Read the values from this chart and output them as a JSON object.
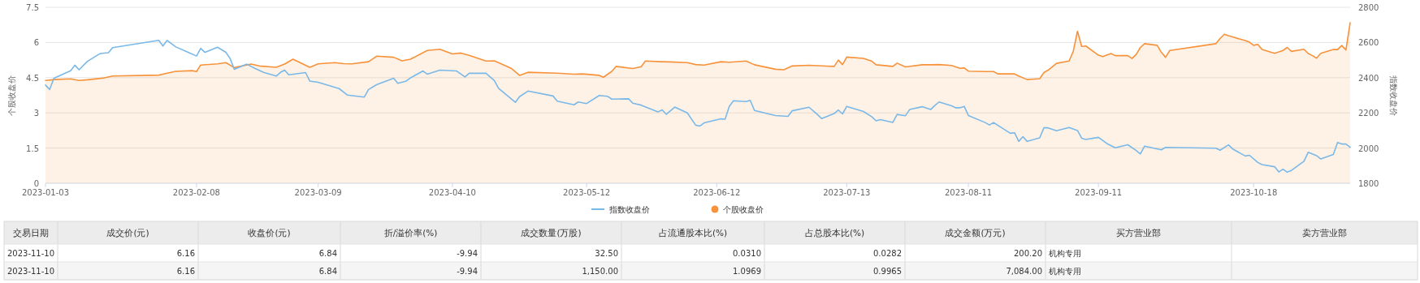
{
  "chart_data": [
    {
      "type": "line",
      "ylabel": "个股收盘价",
      "y2label": "指数收盘价",
      "xlim": [
        "2023-01-03",
        "2023-11-10"
      ],
      "xticks": [
        {
          "value": "2023-01-03",
          "label": "2023-01-03"
        },
        {
          "value": "2023-02-08",
          "label": "2023-02-08"
        },
        {
          "value": "2023-03-09",
          "label": "2023-03-09"
        },
        {
          "value": "2023-04-10",
          "label": "2023-04-10"
        },
        {
          "value": "2023-05-12",
          "label": "2023-05-12"
        },
        {
          "value": "2023-06-12",
          "label": "2023-06-12"
        },
        {
          "value": "2023-07-13",
          "label": "2023-07-13"
        },
        {
          "value": "2023-08-11",
          "label": "2023-08-11"
        },
        {
          "value": "2023-09-11",
          "label": "2023-09-11"
        },
        {
          "value": "2023-10-18",
          "label": "2023-10-18"
        }
      ],
      "ylim": [
        0,
        7.5
      ],
      "yticks": [
        0,
        1.5,
        3,
        4.5,
        6,
        7.5
      ],
      "y2lim": [
        1800,
        2800
      ],
      "y2ticks": [
        1800,
        2000,
        2200,
        2400,
        2600,
        2800
      ],
      "grid": "y",
      "legend": "bottom",
      "series": [
        {
          "name": "指数收盘价",
          "type": "line",
          "axis": "y2",
          "color": "#7ab8e8",
          "x": [
            "2023-01-03",
            "2023-01-04",
            "2023-01-05",
            "2023-01-09",
            "2023-01-10",
            "2023-01-11",
            "2023-01-13",
            "2023-01-16",
            "2023-01-18",
            "2023-01-19",
            "2023-01-30",
            "2023-01-31",
            "2023-02-01",
            "2023-02-03",
            "2023-02-06",
            "2023-02-08",
            "2023-02-09",
            "2023-02-10",
            "2023-02-13",
            "2023-02-15",
            "2023-02-16",
            "2023-02-17",
            "2023-02-20",
            "2023-02-22",
            "2023-02-24",
            "2023-02-27",
            "2023-02-28",
            "2023-03-01",
            "2023-03-02",
            "2023-03-06",
            "2023-03-07",
            "2023-03-09",
            "2023-03-14",
            "2023-03-16",
            "2023-03-20",
            "2023-03-21",
            "2023-03-23",
            "2023-03-27",
            "2023-03-28",
            "2023-03-30",
            "2023-03-31",
            "2023-04-03",
            "2023-04-04",
            "2023-04-07",
            "2023-04-11",
            "2023-04-13",
            "2023-04-14",
            "2023-04-18",
            "2023-04-20",
            "2023-04-21",
            "2023-04-25",
            "2023-04-26",
            "2023-04-28",
            "2023-05-04",
            "2023-05-05",
            "2023-05-09",
            "2023-05-10",
            "2023-05-12",
            "2023-05-15",
            "2023-05-17",
            "2023-05-18",
            "2023-05-22",
            "2023-05-23",
            "2023-05-25",
            "2023-05-29",
            "2023-05-30",
            "2023-05-31",
            "2023-06-02",
            "2023-06-05",
            "2023-06-07",
            "2023-06-08",
            "2023-06-09",
            "2023-06-13",
            "2023-06-14",
            "2023-06-15",
            "2023-06-16",
            "2023-06-19",
            "2023-06-20",
            "2023-06-21",
            "2023-06-26",
            "2023-06-29",
            "2023-06-30",
            "2023-07-04",
            "2023-07-06",
            "2023-07-07",
            "2023-07-10",
            "2023-07-11",
            "2023-07-12",
            "2023-07-13",
            "2023-07-17",
            "2023-07-19",
            "2023-07-20",
            "2023-07-21",
            "2023-07-24",
            "2023-07-25",
            "2023-07-27",
            "2023-07-28",
            "2023-07-31",
            "2023-08-02",
            "2023-08-03",
            "2023-08-04",
            "2023-08-07",
            "2023-08-08",
            "2023-08-09",
            "2023-08-10",
            "2023-08-11",
            "2023-08-15",
            "2023-08-16",
            "2023-08-17",
            "2023-08-21",
            "2023-08-22",
            "2023-08-23",
            "2023-08-24",
            "2023-08-25",
            "2023-08-28",
            "2023-08-29",
            "2023-08-30",
            "2023-09-01",
            "2023-09-04",
            "2023-09-06",
            "2023-09-07",
            "2023-09-08",
            "2023-09-11",
            "2023-09-13",
            "2023-09-15",
            "2023-09-18",
            "2023-09-20",
            "2023-09-21",
            "2023-09-22",
            "2023-09-26",
            "2023-09-27",
            "2023-10-09",
            "2023-10-10",
            "2023-10-12",
            "2023-10-13",
            "2023-10-16",
            "2023-10-17",
            "2023-10-19",
            "2023-10-20",
            "2023-10-23",
            "2023-10-24",
            "2023-10-25",
            "2023-10-26",
            "2023-10-27",
            "2023-10-30",
            "2023-10-31",
            "2023-11-02",
            "2023-11-03",
            "2023-11-06",
            "2023-11-07",
            "2023-11-08",
            "2023-11-09",
            "2023-11-10"
          ],
          "values": [
            2358,
            2333,
            2397,
            2439,
            2471,
            2445,
            2493,
            2537,
            2542,
            2571,
            2612,
            2580,
            2612,
            2576,
            2544,
            2523,
            2567,
            2544,
            2573,
            2544,
            2509,
            2448,
            2477,
            2452,
            2430,
            2409,
            2430,
            2443,
            2416,
            2429,
            2381,
            2374,
            2338,
            2301,
            2290,
            2333,
            2361,
            2397,
            2368,
            2381,
            2399,
            2438,
            2420,
            2443,
            2438,
            2404,
            2425,
            2425,
            2384,
            2340,
            2260,
            2292,
            2324,
            2296,
            2267,
            2246,
            2262,
            2253,
            2299,
            2294,
            2278,
            2280,
            2255,
            2244,
            2205,
            2217,
            2192,
            2233,
            2200,
            2130,
            2125,
            2143,
            2166,
            2164,
            2237,
            2269,
            2264,
            2271,
            2214,
            2185,
            2180,
            2212,
            2232,
            2191,
            2168,
            2196,
            2216,
            2194,
            2237,
            2208,
            2177,
            2155,
            2162,
            2146,
            2191,
            2184,
            2219,
            2235,
            2219,
            2242,
            2262,
            2240,
            2229,
            2229,
            2237,
            2185,
            2145,
            2131,
            2145,
            2084,
            2087,
            2038,
            2065,
            2038,
            2058,
            2115,
            2115,
            2098,
            2117,
            2100,
            2056,
            2049,
            2061,
            2026,
            2002,
            2019,
            1986,
            1967,
            2011,
            1990,
            2004,
            1999,
            1988,
            2018,
            1995,
            1955,
            1959,
            1918,
            1906,
            1894,
            1864,
            1880,
            1863,
            1873,
            1925,
            1976,
            1957,
            1938,
            1964,
            2032,
            2023,
            2023,
            2004
          ]
        },
        {
          "name": "个股收盘价",
          "type": "area",
          "color": "#f7923a",
          "x": [
            "2023-01-03",
            "2023-01-05",
            "2023-01-09",
            "2023-01-11",
            "2023-01-13",
            "2023-01-17",
            "2023-01-19",
            "2023-01-30",
            "2023-02-01",
            "2023-02-03",
            "2023-02-07",
            "2023-02-08",
            "2023-02-09",
            "2023-02-13",
            "2023-02-15",
            "2023-02-17",
            "2023-02-21",
            "2023-02-23",
            "2023-02-27",
            "2023-03-01",
            "2023-03-03",
            "2023-03-07",
            "2023-03-09",
            "2023-03-13",
            "2023-03-15",
            "2023-03-17",
            "2023-03-21",
            "2023-03-23",
            "2023-03-27",
            "2023-03-29",
            "2023-03-31",
            "2023-04-04",
            "2023-04-07",
            "2023-04-10",
            "2023-04-12",
            "2023-04-14",
            "2023-04-18",
            "2023-04-20",
            "2023-04-24",
            "2023-04-26",
            "2023-04-28",
            "2023-05-05",
            "2023-05-09",
            "2023-05-11",
            "2023-05-15",
            "2023-05-16",
            "2023-05-18",
            "2023-05-19",
            "2023-05-23",
            "2023-05-25",
            "2023-05-26",
            "2023-05-30",
            "2023-06-01",
            "2023-06-05",
            "2023-06-07",
            "2023-06-09",
            "2023-06-13",
            "2023-06-15",
            "2023-06-19",
            "2023-06-21",
            "2023-06-26",
            "2023-06-28",
            "2023-06-30",
            "2023-07-04",
            "2023-07-06",
            "2023-07-10",
            "2023-07-11",
            "2023-07-12",
            "2023-07-13",
            "2023-07-17",
            "2023-07-19",
            "2023-07-20",
            "2023-07-24",
            "2023-07-25",
            "2023-07-27",
            "2023-07-31",
            "2023-08-02",
            "2023-08-04",
            "2023-08-07",
            "2023-08-09",
            "2023-08-10",
            "2023-08-11",
            "2023-08-15",
            "2023-08-17",
            "2023-08-18",
            "2023-08-22",
            "2023-08-23",
            "2023-08-25",
            "2023-08-28",
            "2023-08-29",
            "2023-08-30",
            "2023-09-01",
            "2023-09-04",
            "2023-09-05",
            "2023-09-06",
            "2023-09-07",
            "2023-09-08",
            "2023-09-11",
            "2023-09-12",
            "2023-09-14",
            "2023-09-15",
            "2023-09-18",
            "2023-09-19",
            "2023-09-20",
            "2023-09-21",
            "2023-09-22",
            "2023-09-25",
            "2023-09-26",
            "2023-09-27",
            "2023-09-28",
            "2023-10-09",
            "2023-10-10",
            "2023-10-11",
            "2023-10-12",
            "2023-10-16",
            "2023-10-17",
            "2023-10-18",
            "2023-10-19",
            "2023-10-20",
            "2023-10-23",
            "2023-10-25",
            "2023-10-26",
            "2023-10-27",
            "2023-10-30",
            "2023-10-31",
            "2023-11-01",
            "2023-11-02",
            "2023-11-03",
            "2023-11-06",
            "2023-11-07",
            "2023-11-08",
            "2023-11-09",
            "2023-11-10"
          ],
          "values": [
            4.38,
            4.42,
            4.45,
            4.38,
            4.41,
            4.49,
            4.57,
            4.61,
            4.69,
            4.77,
            4.8,
            4.76,
            5.04,
            5.09,
            5.14,
            4.93,
            5.08,
            5.0,
            4.94,
            5.08,
            5.29,
            4.94,
            5.09,
            5.14,
            5.1,
            5.09,
            5.18,
            5.42,
            5.37,
            5.22,
            5.29,
            5.66,
            5.71,
            5.51,
            5.55,
            5.45,
            5.21,
            5.22,
            4.9,
            4.6,
            4.73,
            4.69,
            4.65,
            4.66,
            4.6,
            4.52,
            4.77,
            4.98,
            4.89,
            4.97,
            5.21,
            5.18,
            5.17,
            5.14,
            5.06,
            5.04,
            5.18,
            5.16,
            5.21,
            5.05,
            4.86,
            4.84,
            5.0,
            5.03,
            5.01,
            4.98,
            5.25,
            5.06,
            5.38,
            5.32,
            5.2,
            5.05,
            4.98,
            5.12,
            4.96,
            5.05,
            5.05,
            5.06,
            5.02,
            4.9,
            4.92,
            4.78,
            4.76,
            4.76,
            4.66,
            4.66,
            4.57,
            4.42,
            4.46,
            4.72,
            4.82,
            5.11,
            5.21,
            5.62,
            6.48,
            5.83,
            5.85,
            5.46,
            5.4,
            5.53,
            5.44,
            5.44,
            5.32,
            5.49,
            5.79,
            5.95,
            5.88,
            5.58,
            5.37,
            5.66,
            5.95,
            6.17,
            6.35,
            6.29,
            6.08,
            6.01,
            5.88,
            5.92,
            5.7,
            5.54,
            5.66,
            5.79,
            5.62,
            5.71,
            5.53,
            5.44,
            5.33,
            5.54,
            5.7,
            5.7,
            5.87,
            5.68,
            6.84
          ]
        }
      ]
    },
    {
      "type": "other",
      "categories": [
        "交易日期",
        "成交价(元)",
        "收盘价(元)",
        "折/溢价率(%)",
        "成交数量(万股)",
        "占流通股本比(%)",
        "占总股本比(%)",
        "成交金额(万元)",
        "买方营业部",
        "卖方营业部"
      ],
      "cell_labels": [
        [
          "2023-11-10",
          "6.16",
          "6.84",
          "-9.94",
          "32.50",
          "0.0310",
          "0.0282",
          "200.20",
          "机构专用",
          null
        ],
        [
          "2023-11-10",
          "6.16",
          "6.84",
          "-9.94",
          "1,150.00",
          "1.0969",
          "0.9965",
          "7,084.00",
          "机构专用",
          null
        ]
      ]
    }
  ]
}
